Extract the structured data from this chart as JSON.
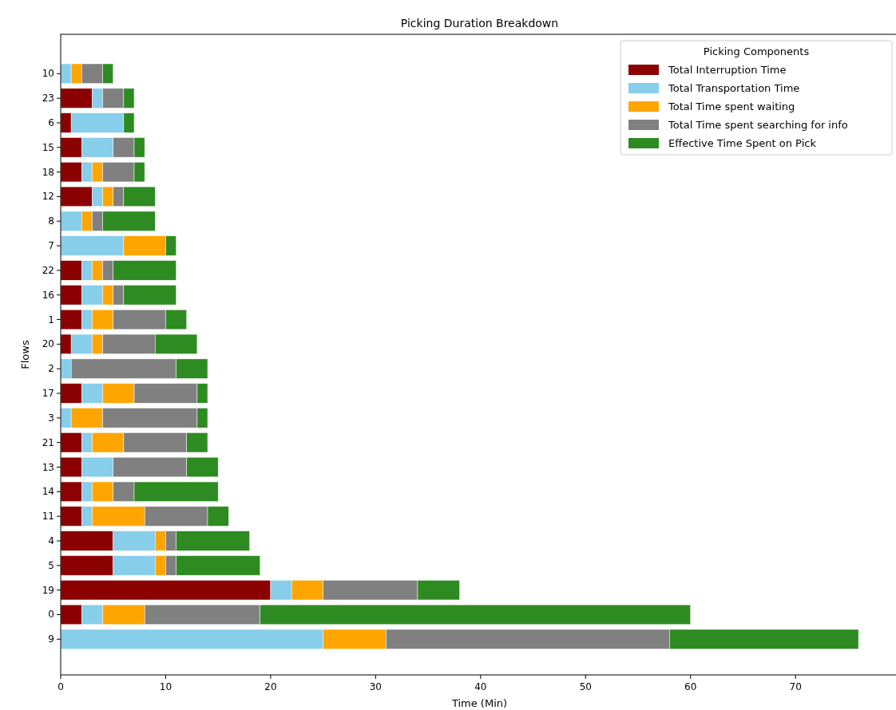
{
  "chart_data": {
    "type": "bar",
    "orientation": "horizontal",
    "stacked": true,
    "title": "Picking Duration Breakdown",
    "xlabel": "Time (Min)",
    "ylabel": "Flows",
    "legend_title": "Picking Components",
    "legend": "top right",
    "categories": [
      "10",
      "23",
      "6",
      "15",
      "18",
      "12",
      "8",
      "7",
      "22",
      "16",
      "1",
      "20",
      "2",
      "17",
      "3",
      "21",
      "13",
      "14",
      "11",
      "4",
      "5",
      "19",
      "0",
      "9"
    ],
    "series": [
      {
        "name": "Total Interruption Time",
        "color": "#8b0000",
        "values": [
          0,
          3,
          1,
          2,
          2,
          3,
          0,
          0,
          2,
          2,
          2,
          1,
          0,
          2,
          0,
          2,
          2,
          2,
          2,
          5,
          5,
          20,
          2,
          0
        ]
      },
      {
        "name": "Total Transportation Time",
        "color": "#87ceeb",
        "values": [
          1,
          1,
          5,
          3,
          1,
          1,
          2,
          6,
          1,
          2,
          1,
          2,
          1,
          2,
          1,
          1,
          3,
          1,
          1,
          4,
          4,
          2,
          2,
          25
        ]
      },
      {
        "name": "Total Time spent waiting",
        "color": "#ffa500",
        "values": [
          1,
          0,
          0,
          0,
          1,
          1,
          1,
          4,
          1,
          1,
          2,
          1,
          0,
          3,
          3,
          3,
          0,
          2,
          5,
          1,
          1,
          3,
          4,
          6
        ]
      },
      {
        "name": "Total Time spent searching for info",
        "color": "#808080",
        "values": [
          2,
          2,
          0,
          2,
          3,
          1,
          1,
          0,
          1,
          1,
          5,
          5,
          10,
          6,
          9,
          6,
          7,
          2,
          6,
          1,
          1,
          9,
          11,
          27
        ]
      },
      {
        "name": "Effective Time Spent on Pick",
        "color": "#2e8b22",
        "values": [
          1,
          1,
          1,
          1,
          1,
          3,
          5,
          1,
          6,
          5,
          2,
          4,
          3,
          1,
          1,
          2,
          3,
          8,
          2,
          7,
          8,
          4,
          41,
          18
        ]
      }
    ],
    "xlim": [
      0,
      79.8
    ],
    "xticks": [
      0,
      10,
      20,
      30,
      40,
      50,
      60,
      70
    ]
  }
}
